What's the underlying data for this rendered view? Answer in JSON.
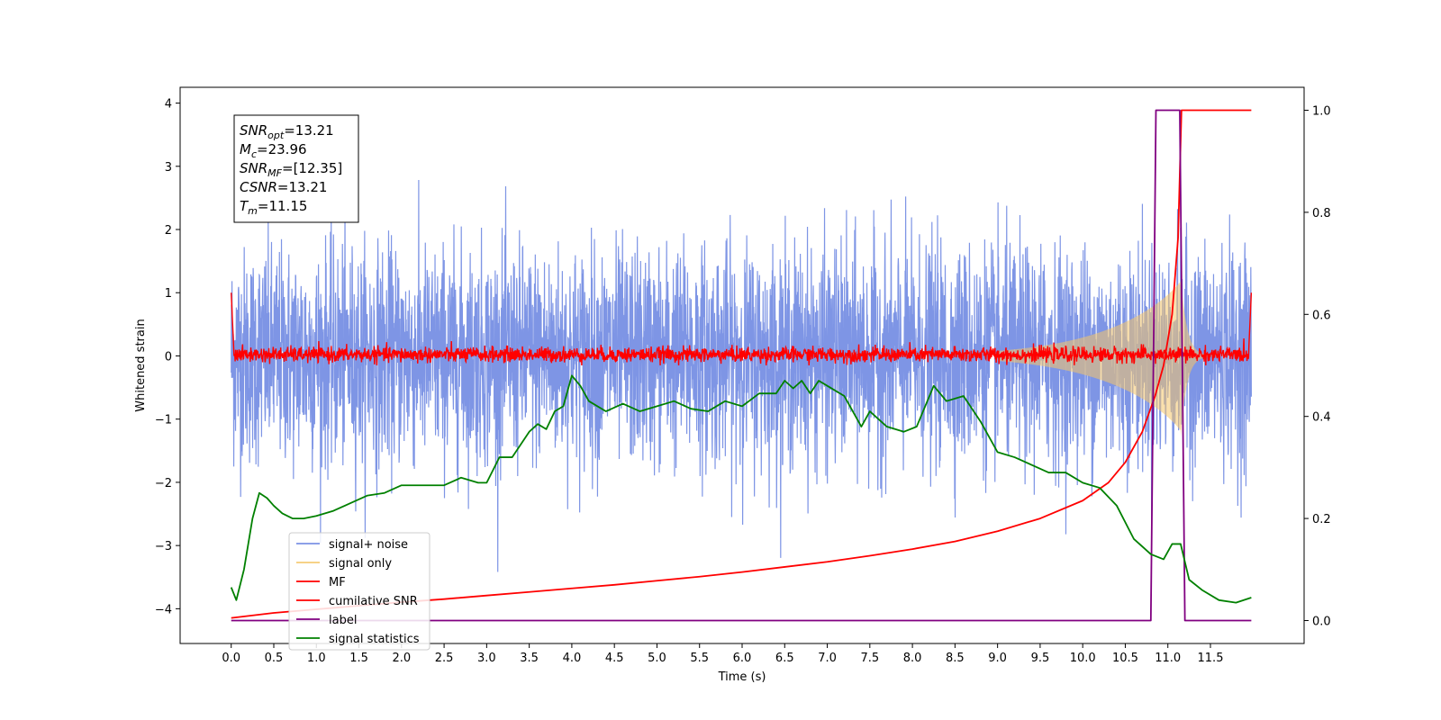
{
  "chart_data": {
    "type": "line",
    "title": "",
    "xlabel": "Time (s)",
    "ylabel": "Whitened strain",
    "y2label": "",
    "xlim": [
      -0.6,
      12.6
    ],
    "ylim": [
      -4.55,
      4.25
    ],
    "y2lim": [
      -0.045,
      1.045
    ],
    "x_ticks": [
      0.0,
      0.5,
      1.0,
      1.5,
      2.0,
      2.5,
      3.0,
      3.5,
      4.0,
      4.5,
      5.0,
      5.5,
      6.0,
      6.5,
      7.0,
      7.5,
      8.0,
      8.5,
      9.0,
      9.5,
      10.0,
      10.5,
      11.0,
      11.5
    ],
    "x_tick_labels": [
      "0.0",
      "0.5",
      "1.0",
      "1.5",
      "2.0",
      "2.5",
      "3.0",
      "3.5",
      "4.0",
      "4.5",
      "5.0",
      "5.5",
      "6.0",
      "6.5",
      "7.0",
      "7.5",
      "8.0",
      "8.5",
      "9.0",
      "9.5",
      "10.0",
      "10.5",
      "11.0",
      "11.5"
    ],
    "y_ticks": [
      -4,
      -3,
      -2,
      -1,
      0,
      1,
      2,
      3,
      4
    ],
    "y_tick_labels": [
      "−4",
      "−3",
      "−2",
      "−1",
      "0",
      "1",
      "2",
      "3",
      "4"
    ],
    "y2_ticks": [
      0.0,
      0.2,
      0.4,
      0.6,
      0.8,
      1.0
    ],
    "y2_tick_labels": [
      "0.0",
      "0.2",
      "0.4",
      "0.6",
      "0.8",
      "1.0"
    ],
    "grid": false,
    "legend_position": "bottom-left",
    "series": [
      {
        "name": "signal+ noise",
        "axis": "left",
        "color": "#7b93e4",
        "description_kind": "noise",
        "x_range": [
          0.0,
          11.98
        ],
        "y_range": [
          -4.15,
          3.85
        ]
      },
      {
        "name": "signal only",
        "axis": "left",
        "color": "#f5c76a",
        "description_kind": "chirp",
        "x_range": [
          0.0,
          11.98
        ],
        "peak_time": 11.15,
        "peak_amplitude": 1.3
      },
      {
        "name": "MF",
        "axis": "left",
        "color": "#ff0000",
        "description_kind": "mf",
        "x_range": [
          0.0,
          11.98
        ],
        "y_range": [
          -0.15,
          1.0
        ]
      },
      {
        "name": "cumilative SNR",
        "axis": "right",
        "color": "#ff0000",
        "x": [
          0.0,
          0.5,
          1.0,
          1.5,
          2.0,
          2.5,
          3.0,
          3.5,
          4.0,
          4.5,
          5.0,
          5.5,
          6.0,
          6.5,
          7.0,
          7.5,
          8.0,
          8.5,
          9.0,
          9.5,
          10.0,
          10.3,
          10.5,
          10.7,
          10.85,
          10.95,
          11.05,
          11.12,
          11.16,
          11.98
        ],
        "y": [
          0.005,
          0.015,
          0.022,
          0.029,
          0.036,
          0.042,
          0.049,
          0.056,
          0.063,
          0.07,
          0.078,
          0.086,
          0.095,
          0.105,
          0.115,
          0.127,
          0.14,
          0.155,
          0.175,
          0.2,
          0.235,
          0.27,
          0.31,
          0.37,
          0.44,
          0.5,
          0.6,
          0.75,
          1.0,
          1.0
        ]
      },
      {
        "name": "label",
        "axis": "right",
        "color": "#800080",
        "x": [
          0.0,
          10.8,
          10.86,
          11.14,
          11.2,
          11.98
        ],
        "y": [
          0.0,
          0.0,
          1.0,
          1.0,
          0.0,
          0.0
        ]
      },
      {
        "name": "signal statistics",
        "axis": "right",
        "color": "#008000",
        "x": [
          0.0,
          0.06,
          0.15,
          0.25,
          0.33,
          0.42,
          0.5,
          0.6,
          0.72,
          0.85,
          1.0,
          1.2,
          1.4,
          1.6,
          1.8,
          2.0,
          2.2,
          2.5,
          2.7,
          2.9,
          3.0,
          3.15,
          3.3,
          3.5,
          3.6,
          3.7,
          3.8,
          3.9,
          4.0,
          4.1,
          4.2,
          4.4,
          4.6,
          4.8,
          5.0,
          5.2,
          5.4,
          5.6,
          5.8,
          6.0,
          6.2,
          6.4,
          6.5,
          6.6,
          6.7,
          6.8,
          6.9,
          7.0,
          7.2,
          7.4,
          7.5,
          7.7,
          7.9,
          8.05,
          8.25,
          8.4,
          8.6,
          8.8,
          9.0,
          9.2,
          9.4,
          9.6,
          9.8,
          10.0,
          10.2,
          10.4,
          10.6,
          10.8,
          10.95,
          11.05,
          11.15,
          11.25,
          11.4,
          11.6,
          11.8,
          11.98
        ],
        "y": [
          0.065,
          0.04,
          0.1,
          0.2,
          0.25,
          0.24,
          0.225,
          0.21,
          0.2,
          0.2,
          0.205,
          0.215,
          0.23,
          0.245,
          0.25,
          0.265,
          0.265,
          0.265,
          0.28,
          0.27,
          0.27,
          0.32,
          0.32,
          0.37,
          0.385,
          0.375,
          0.41,
          0.42,
          0.48,
          0.46,
          0.43,
          0.41,
          0.425,
          0.41,
          0.42,
          0.43,
          0.415,
          0.41,
          0.43,
          0.42,
          0.445,
          0.445,
          0.47,
          0.455,
          0.47,
          0.445,
          0.47,
          0.46,
          0.44,
          0.38,
          0.41,
          0.38,
          0.37,
          0.38,
          0.46,
          0.43,
          0.44,
          0.39,
          0.33,
          0.32,
          0.305,
          0.29,
          0.29,
          0.27,
          0.26,
          0.225,
          0.16,
          0.13,
          0.12,
          0.15,
          0.15,
          0.08,
          0.06,
          0.04,
          0.035,
          0.045
        ]
      }
    ],
    "annotation": {
      "lines": [
        {
          "base": "SNR",
          "sub": "opt",
          "value": "=13.21"
        },
        {
          "base": "M",
          "sub": "c",
          "value": "=23.96"
        },
        {
          "base": "SNR",
          "sub": "MF",
          "value": "=[12.35]"
        },
        {
          "base": "CSNR",
          "sub": "",
          "value": "=13.21"
        },
        {
          "base": "T",
          "sub": "m",
          "value": "=11.15"
        }
      ]
    }
  }
}
